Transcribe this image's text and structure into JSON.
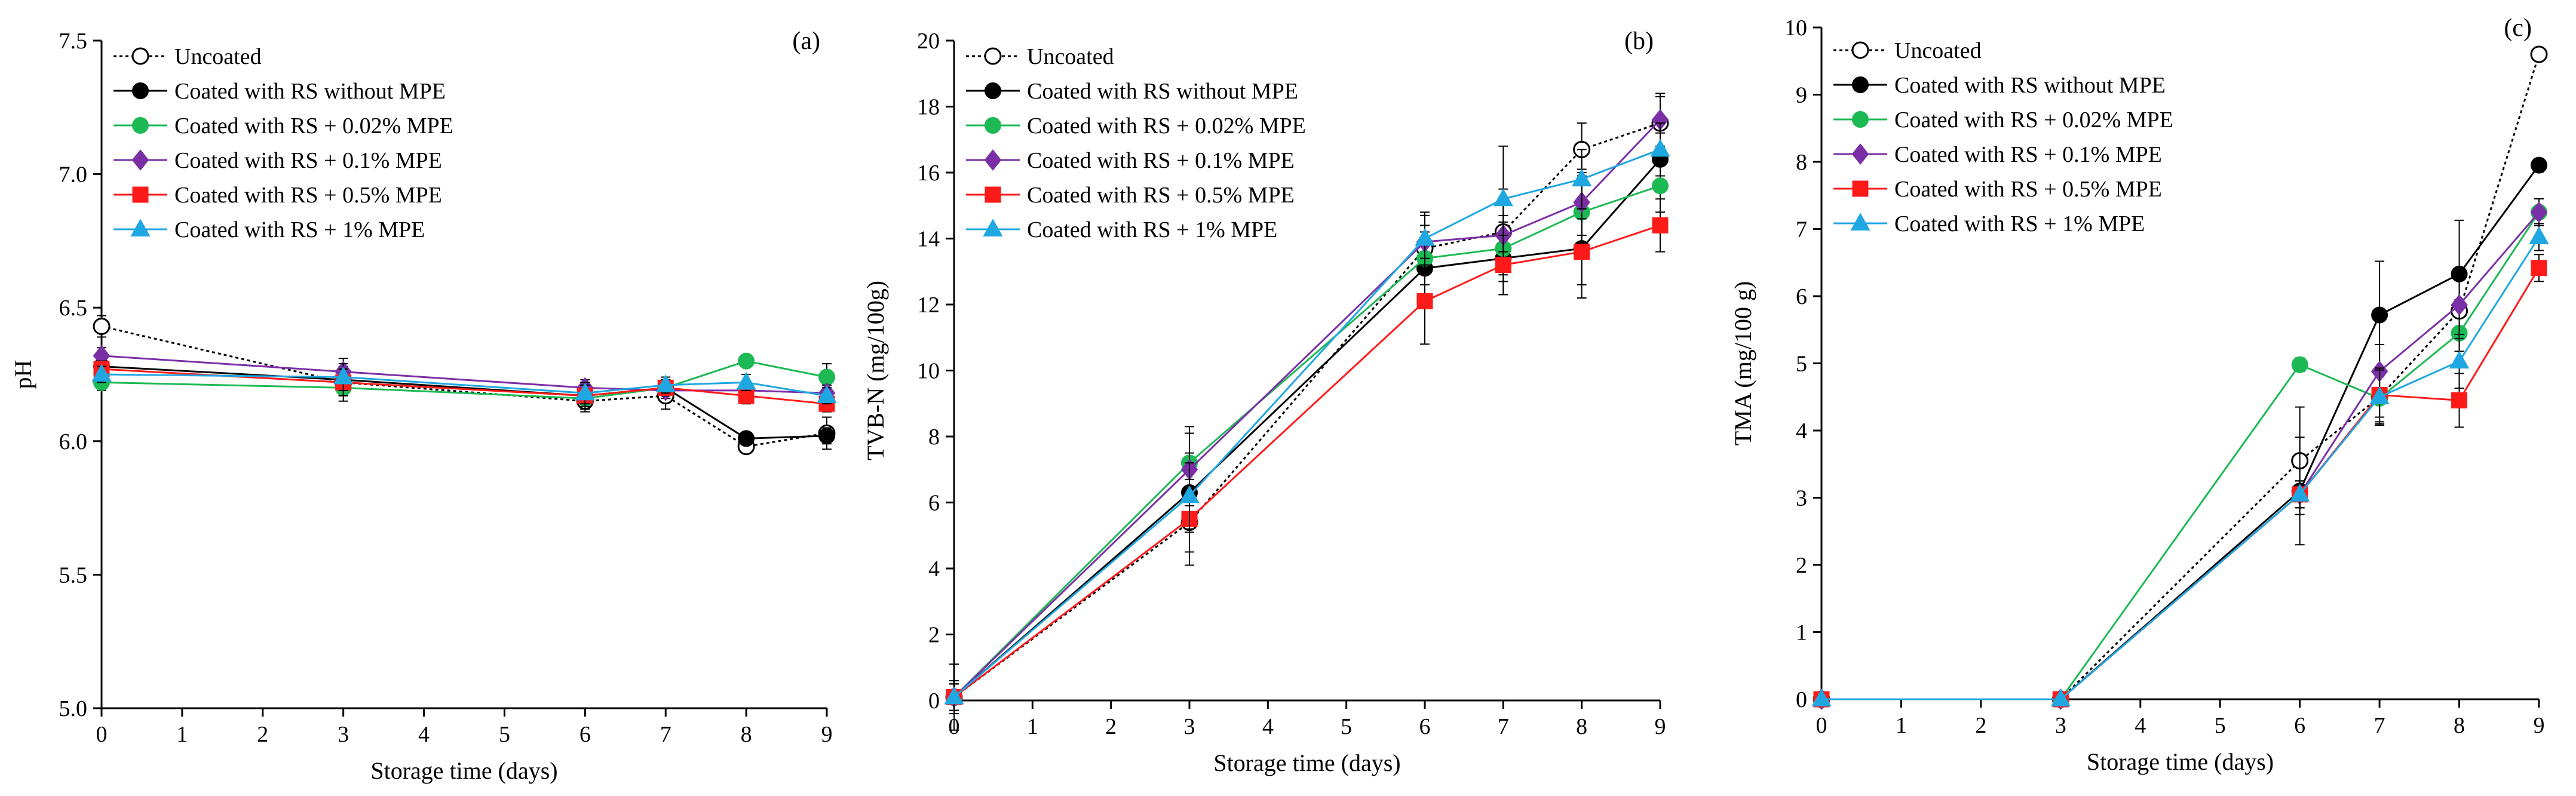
{
  "figure": {
    "legend_entries": [
      {
        "key": "uncoated",
        "label": "Uncoated",
        "color": "#000000",
        "marker": "open-circle",
        "dash": "dotted"
      },
      {
        "key": "rs",
        "label": "Coated with RS without MPE",
        "color": "#000000",
        "marker": "circle",
        "dash": "solid"
      },
      {
        "key": "mpe002",
        "label": "Coated with RS + 0.02% MPE",
        "color": "#1DB954",
        "marker": "circle",
        "dash": "solid"
      },
      {
        "key": "mpe01",
        "label": "Coated with RS + 0.1% MPE",
        "color": "#7B2FA6",
        "marker": "diamond",
        "dash": "solid"
      },
      {
        "key": "mpe05",
        "label": "Coated with RS + 0.5% MPE",
        "color": "#FF1A1A",
        "marker": "square",
        "dash": "solid"
      },
      {
        "key": "mpe1",
        "label": "Coated with RS + 1% MPE",
        "color": "#1EA7E1",
        "marker": "triangle",
        "dash": "solid"
      }
    ]
  },
  "chart_data": [
    {
      "type": "line",
      "panel_label": "(a)",
      "xlabel": "Storage time (days)",
      "ylabel": "pH",
      "x": [
        0,
        3,
        6,
        7,
        8,
        9
      ],
      "xticks": [
        "0",
        "1",
        "2",
        "3",
        "4",
        "5",
        "6",
        "7",
        "8",
        "9"
      ],
      "xlim": [
        0,
        9
      ],
      "ylim": [
        5.0,
        7.5
      ],
      "yticks": [
        "5.0",
        "5.5",
        "6.0",
        "6.5",
        "7.0",
        "7.5"
      ],
      "legend_position": "top-left",
      "series": [
        {
          "key": "uncoated",
          "name": "Uncoated",
          "values": [
            6.43,
            6.22,
            6.15,
            6.17,
            5.98,
            6.03
          ],
          "errors": [
            0.04,
            0.05,
            0.04,
            0.05,
            0.02,
            0.06
          ]
        },
        {
          "key": "rs",
          "name": "Coated with RS without MPE",
          "values": [
            6.28,
            6.23,
            6.17,
            6.2,
            6.01,
            6.02
          ],
          "errors": [
            0.03,
            0.05,
            0.05,
            0.03,
            0.02,
            0.03
          ]
        },
        {
          "key": "mpe002",
          "name": "Coated with RS + 0.02% MPE",
          "values": [
            6.22,
            6.2,
            6.16,
            6.2,
            6.3,
            6.24
          ],
          "errors": [
            0.03,
            0.05,
            0.04,
            0.03,
            0.02,
            0.05
          ]
        },
        {
          "key": "mpe01",
          "name": "Coated with RS + 0.1% MPE",
          "values": [
            6.32,
            6.26,
            6.2,
            6.19,
            6.19,
            6.18
          ],
          "errors": [
            0.03,
            0.05,
            0.03,
            0.03,
            0.03,
            0.03
          ]
        },
        {
          "key": "mpe05",
          "name": "Coated with RS + 0.5% MPE",
          "values": [
            6.27,
            6.22,
            6.17,
            6.2,
            6.17,
            6.14
          ],
          "errors": [
            0.03,
            0.05,
            0.04,
            0.03,
            0.03,
            0.03
          ]
        },
        {
          "key": "mpe1",
          "name": "Coated with RS + 1% MPE",
          "values": [
            6.25,
            6.24,
            6.18,
            6.21,
            6.22,
            6.17
          ],
          "errors": [
            0.03,
            0.05,
            0.04,
            0.03,
            0.03,
            0.03
          ]
        }
      ]
    },
    {
      "type": "line",
      "panel_label": "(b)",
      "xlabel": "Storage time (days)",
      "ylabel": "TVB-N (mg/100g)",
      "x": [
        0,
        3,
        6,
        7,
        8,
        9
      ],
      "xticks": [
        "0",
        "1",
        "2",
        "3",
        "4",
        "5",
        "6",
        "7",
        "8",
        "9"
      ],
      "xlim": [
        0,
        9
      ],
      "ylim": [
        0,
        20
      ],
      "yticks": [
        "0",
        "2",
        "4",
        "6",
        "8",
        "10",
        "12",
        "14",
        "16",
        "18",
        "20"
      ],
      "legend_position": "top-left",
      "series": [
        {
          "key": "uncoated",
          "name": "Uncoated",
          "values": [
            0.1,
            5.4,
            13.7,
            14.2,
            16.7,
            17.5
          ],
          "errors": [
            1.0,
            1.3,
            0.7,
            1.3,
            0.8,
            0.8
          ]
        },
        {
          "key": "rs",
          "name": "Coated with RS without MPE",
          "values": [
            0.1,
            6.3,
            13.1,
            13.4,
            13.7,
            16.4
          ],
          "errors": [
            0.5,
            1.2,
            0.8,
            1.1,
            1.5,
            0.8
          ]
        },
        {
          "key": "mpe002",
          "name": "Coated with RS + 0.02% MPE",
          "values": [
            0.1,
            7.2,
            13.4,
            13.7,
            14.8,
            15.6
          ],
          "errors": [
            0.4,
            1.1,
            0.8,
            1.0,
            1.2,
            0.8
          ]
        },
        {
          "key": "mpe01",
          "name": "Coated with RS + 0.1% MPE",
          "values": [
            0.1,
            7.0,
            13.9,
            14.1,
            15.1,
            17.6
          ],
          "errors": [
            0.4,
            1.1,
            0.8,
            1.0,
            1.0,
            0.8
          ]
        },
        {
          "key": "mpe05",
          "name": "Coated with RS + 0.5% MPE",
          "values": [
            0.1,
            5.5,
            12.1,
            13.2,
            13.6,
            14.4
          ],
          "errors": [
            0.4,
            1.0,
            1.3,
            0.9,
            1.0,
            0.8
          ]
        },
        {
          "key": "mpe1",
          "name": "Coated with RS + 1% MPE",
          "values": [
            0.1,
            6.2,
            14.0,
            15.2,
            15.8,
            16.7
          ],
          "errors": [
            0.4,
            1.0,
            0.8,
            1.6,
            0.9,
            0.8
          ]
        }
      ]
    },
    {
      "type": "line",
      "panel_label": "(c)",
      "xlabel": "Storage time (days)",
      "ylabel": "TMA (mg/100 g)",
      "x": [
        0,
        3,
        6,
        7,
        8,
        9
      ],
      "xticks": [
        "0",
        "1",
        "2",
        "3",
        "4",
        "5",
        "6",
        "7",
        "8",
        "9"
      ],
      "xlim": [
        0,
        9
      ],
      "ylim": [
        0,
        10
      ],
      "yticks": [
        "0",
        "1",
        "2",
        "3",
        "4",
        "5",
        "6",
        "7",
        "8",
        "9",
        "10"
      ],
      "legend_position": "top-left",
      "series": [
        {
          "key": "uncoated",
          "name": "Uncoated",
          "values": [
            0,
            0,
            3.55,
            4.5,
            5.78,
            9.6
          ],
          "errors": [
            0,
            0,
            0.8,
            0.3,
            0.6,
            0.1
          ]
        },
        {
          "key": "rs",
          "name": "Coated with RS without MPE",
          "values": [
            0,
            0,
            3.1,
            5.72,
            6.33,
            7.95
          ],
          "errors": [
            0,
            0,
            0.8,
            0.8,
            0.8,
            0.1
          ]
        },
        {
          "key": "mpe002",
          "name": "Coated with RS + 0.02% MPE",
          "values": [
            0,
            0,
            4.98,
            4.48,
            5.45,
            7.25
          ],
          "errors": [
            0,
            0,
            0.1,
            0.4,
            0.5,
            0.2
          ]
        },
        {
          "key": "mpe01",
          "name": "Coated with RS + 0.1% MPE",
          "values": [
            0,
            0,
            3.05,
            4.88,
            5.87,
            7.25
          ],
          "errors": [
            0,
            0,
            0.2,
            0.4,
            0.5,
            0.2
          ]
        },
        {
          "key": "mpe05",
          "name": "Coated with RS + 0.5% MPE",
          "values": [
            0,
            0,
            3.05,
            4.53,
            4.45,
            6.42
          ],
          "errors": [
            0,
            0,
            0.2,
            0.4,
            0.4,
            0.2
          ]
        },
        {
          "key": "mpe1",
          "name": "Coated with RS + 1% MPE",
          "values": [
            0,
            0,
            3.05,
            4.5,
            5.03,
            6.88
          ],
          "errors": [
            0,
            0,
            0.2,
            0.4,
            0.4,
            0.2
          ]
        }
      ]
    }
  ]
}
